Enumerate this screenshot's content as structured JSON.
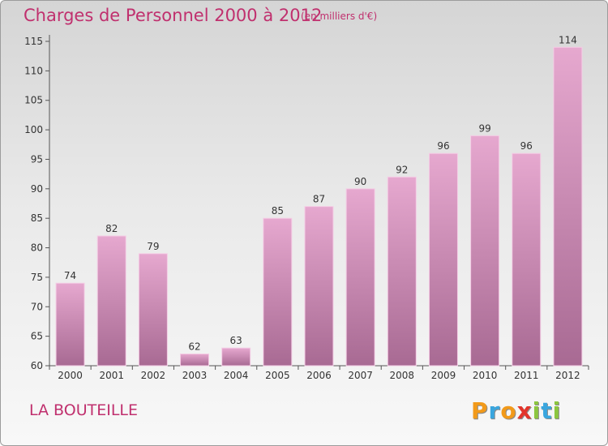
{
  "header": {
    "title": "Charges de Personnel 2000 à 2012",
    "subtitle": "(en milliers d'€)"
  },
  "footer": {
    "commune": "LA BOUTEILLE",
    "logo_letters": [
      "P",
      "r",
      "o",
      "x",
      "i",
      "t",
      "i"
    ],
    "logo_colors": [
      "#f29a1a",
      "#3aa6de",
      "#f29a1a",
      "#e2352b",
      "#8cc63f",
      "#3aa6de",
      "#8cc63f"
    ]
  },
  "chart_data": {
    "type": "bar",
    "title": "Charges de Personnel 2000 à 2012",
    "subtitle": "(en milliers d'€)",
    "categories": [
      "2000",
      "2001",
      "2002",
      "2003",
      "2004",
      "2005",
      "2006",
      "2007",
      "2008",
      "2009",
      "2010",
      "2011",
      "2012"
    ],
    "values": [
      74,
      82,
      79,
      62,
      63,
      85,
      87,
      90,
      92,
      96,
      99,
      96,
      114
    ],
    "ylim": [
      60,
      115
    ],
    "yticks": [
      60,
      65,
      70,
      75,
      80,
      85,
      90,
      95,
      100,
      105,
      110,
      115
    ],
    "grid": false,
    "colors": {
      "bar_top": "#e6a8cf",
      "bar_bottom": "#a86a93",
      "bar_edge": "#f4cde5",
      "text": "#333333",
      "accent": "#c0306e"
    }
  }
}
